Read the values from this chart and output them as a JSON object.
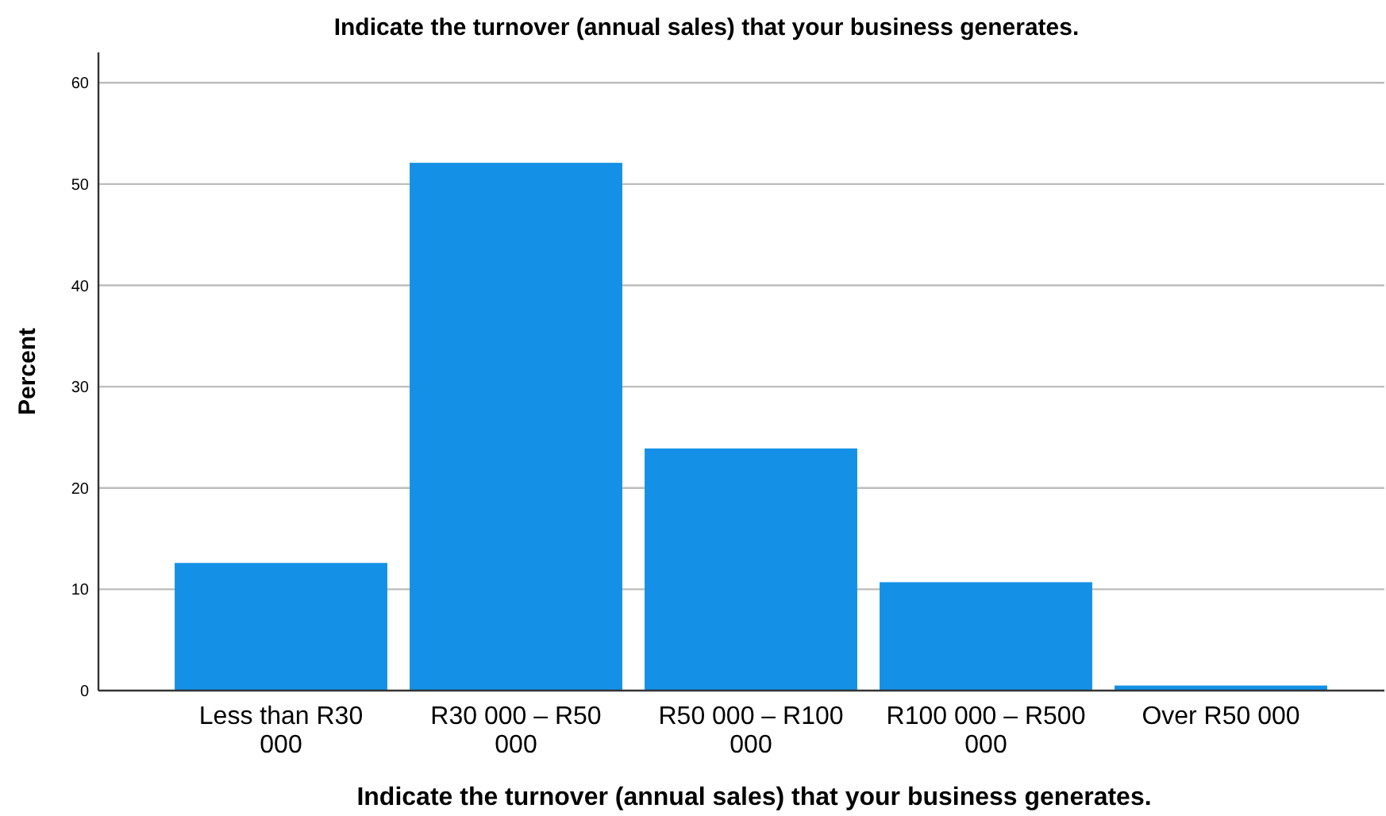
{
  "chart_data": {
    "type": "bar",
    "title": "Indicate the turnover (annual sales) that your business generates.",
    "xlabel": "Indicate the turnover (annual sales) that your business generates.",
    "ylabel": "Percent",
    "categories": [
      "Less than R30 000",
      "R30 000 – R50 000",
      "R50 000 – R100 000",
      "R100 000 – R500 000",
      "Over R50 000"
    ],
    "values": [
      12.6,
      52.1,
      23.9,
      10.7,
      0.5
    ],
    "color": "#1491e6",
    "ylim": [
      0,
      63
    ],
    "yticks": [
      0,
      10,
      20,
      30,
      40,
      50,
      60
    ],
    "grid": "y"
  }
}
